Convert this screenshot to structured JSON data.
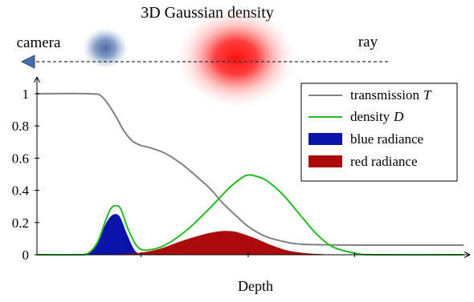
{
  "header": {
    "title": "3D Gaussian density",
    "camera_label": "camera",
    "ray_label": "ray"
  },
  "colors": {
    "transmission": "#808080",
    "density": "#22bb22",
    "blue_radiance": "#0a14a8",
    "red_radiance": "#aa0a0a",
    "blue_blob": "#4a6aa6",
    "red_blob": "#ff1a1a",
    "camera": "#4a6aa6"
  },
  "chart_data": {
    "type": "area",
    "xlabel": "Depth",
    "ylabel": "",
    "xlim": [
      0,
      1
    ],
    "ylim": [
      0,
      1
    ],
    "yticks": [
      "0",
      "0.2",
      "0.4",
      "0.6",
      "0.8",
      "1"
    ],
    "ytick_values": [
      0,
      0.2,
      0.4,
      0.6,
      0.8,
      1
    ],
    "xtick_values": [
      0.2441,
      0.4952,
      0.7444
    ],
    "legend_position": "top-right",
    "series": [
      {
        "name": "transmission",
        "name_symbol": "T",
        "kind": "line",
        "color_key": "transmission",
        "x": [
          0,
          0.1231,
          0.1529,
          0.1827,
          0.2013,
          0.2217,
          0.2423,
          0.2646,
          0.3004,
          0.3385,
          0.377,
          0.4078,
          0.4358,
          0.4656,
          0.4954,
          0.5345,
          0.5736,
          0.622,
          0.7463,
          1
        ],
        "y": [
          1,
          1,
          0.98,
          0.87,
          0.78,
          0.71,
          0.68,
          0.665,
          0.63,
          0.565,
          0.48,
          0.405,
          0.32,
          0.245,
          0.175,
          0.115,
          0.085,
          0.065,
          0.06,
          0.06
        ]
      },
      {
        "name": "density",
        "name_symbol": "D",
        "kind": "line",
        "color_key": "density",
        "x": [
          0,
          0.095,
          0.1205,
          0.1424,
          0.162,
          0.1741,
          0.1862,
          0.1973,
          0.215,
          0.2396,
          0.2736,
          0.3073,
          0.3499,
          0.3827,
          0.4199,
          0.4525,
          0.4814,
          0.4952,
          0.5108,
          0.5387,
          0.5778,
          0.6159,
          0.655,
          0.6927,
          0.7444,
          0.7928,
          1
        ],
        "y": [
          0,
          0,
          0.01,
          0.08,
          0.22,
          0.29,
          0.305,
          0.28,
          0.15,
          0.04,
          0.035,
          0.07,
          0.15,
          0.23,
          0.33,
          0.42,
          0.48,
          0.495,
          0.49,
          0.46,
          0.37,
          0.25,
          0.13,
          0.05,
          0.01,
          0,
          0
        ]
      },
      {
        "name": "blue radiance",
        "kind": "area",
        "color_key": "blue_radiance",
        "x": [
          0.095,
          0.1201,
          0.1424,
          0.1601,
          0.1732,
          0.1853,
          0.1955,
          0.2113,
          0.2301,
          0.2525
        ],
        "y": [
          0,
          0.01,
          0.07,
          0.18,
          0.235,
          0.25,
          0.225,
          0.12,
          0.02,
          0
        ]
      },
      {
        "name": "red radiance",
        "kind": "area",
        "color_key": "red_radiance",
        "x": [
          0.1862,
          0.2413,
          0.2888,
          0.3304,
          0.3723,
          0.4087,
          0.4357,
          0.4656,
          0.5061,
          0.5466,
          0.5857,
          0.6313,
          0.6769
        ],
        "y": [
          0,
          0.01,
          0.035,
          0.075,
          0.11,
          0.135,
          0.145,
          0.14,
          0.105,
          0.06,
          0.025,
          0.007,
          0
        ]
      }
    ]
  }
}
